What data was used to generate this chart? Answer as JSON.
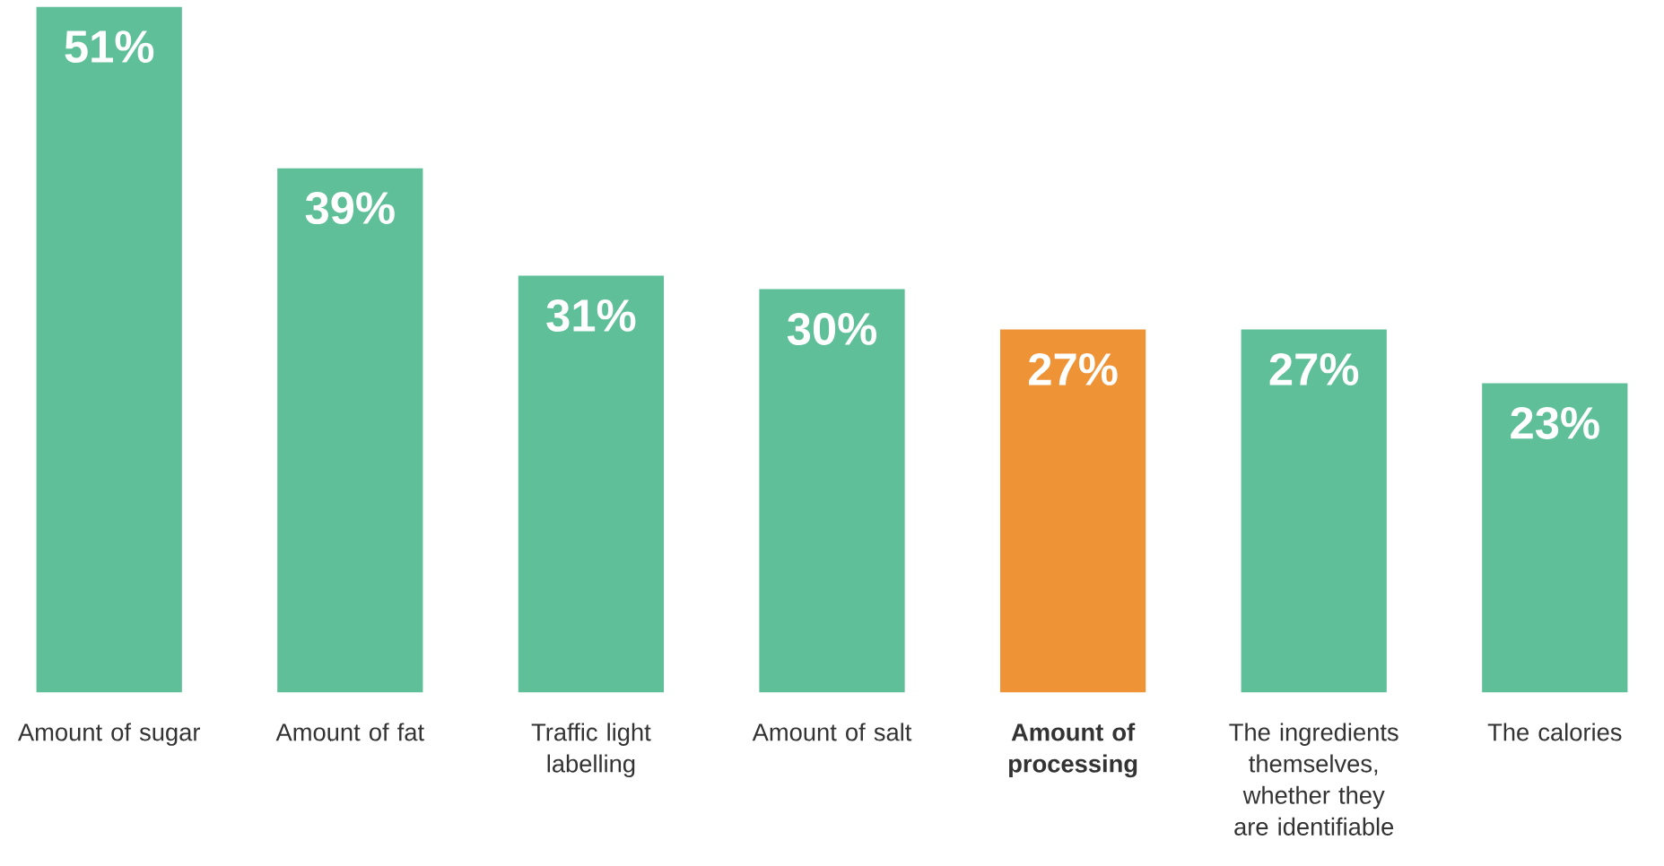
{
  "chart_data": {
    "type": "bar",
    "categories": [
      "Amount of sugar",
      "Amount of fat",
      "Traffic light labelling",
      "Amount of salt",
      "Amount of processing",
      "The ingredients themselves, whether they are identifiable",
      "The calories"
    ],
    "values": [
      51,
      39,
      31,
      30,
      27,
      27,
      23
    ],
    "value_labels": [
      "51%",
      "39%",
      "31%",
      "30%",
      "27%",
      "27%",
      "23%"
    ],
    "colors": [
      "#5ebf98",
      "#5ebf98",
      "#5ebf98",
      "#5ebf98",
      "#ef9337",
      "#5ebf98",
      "#5ebf98"
    ]
  }
}
